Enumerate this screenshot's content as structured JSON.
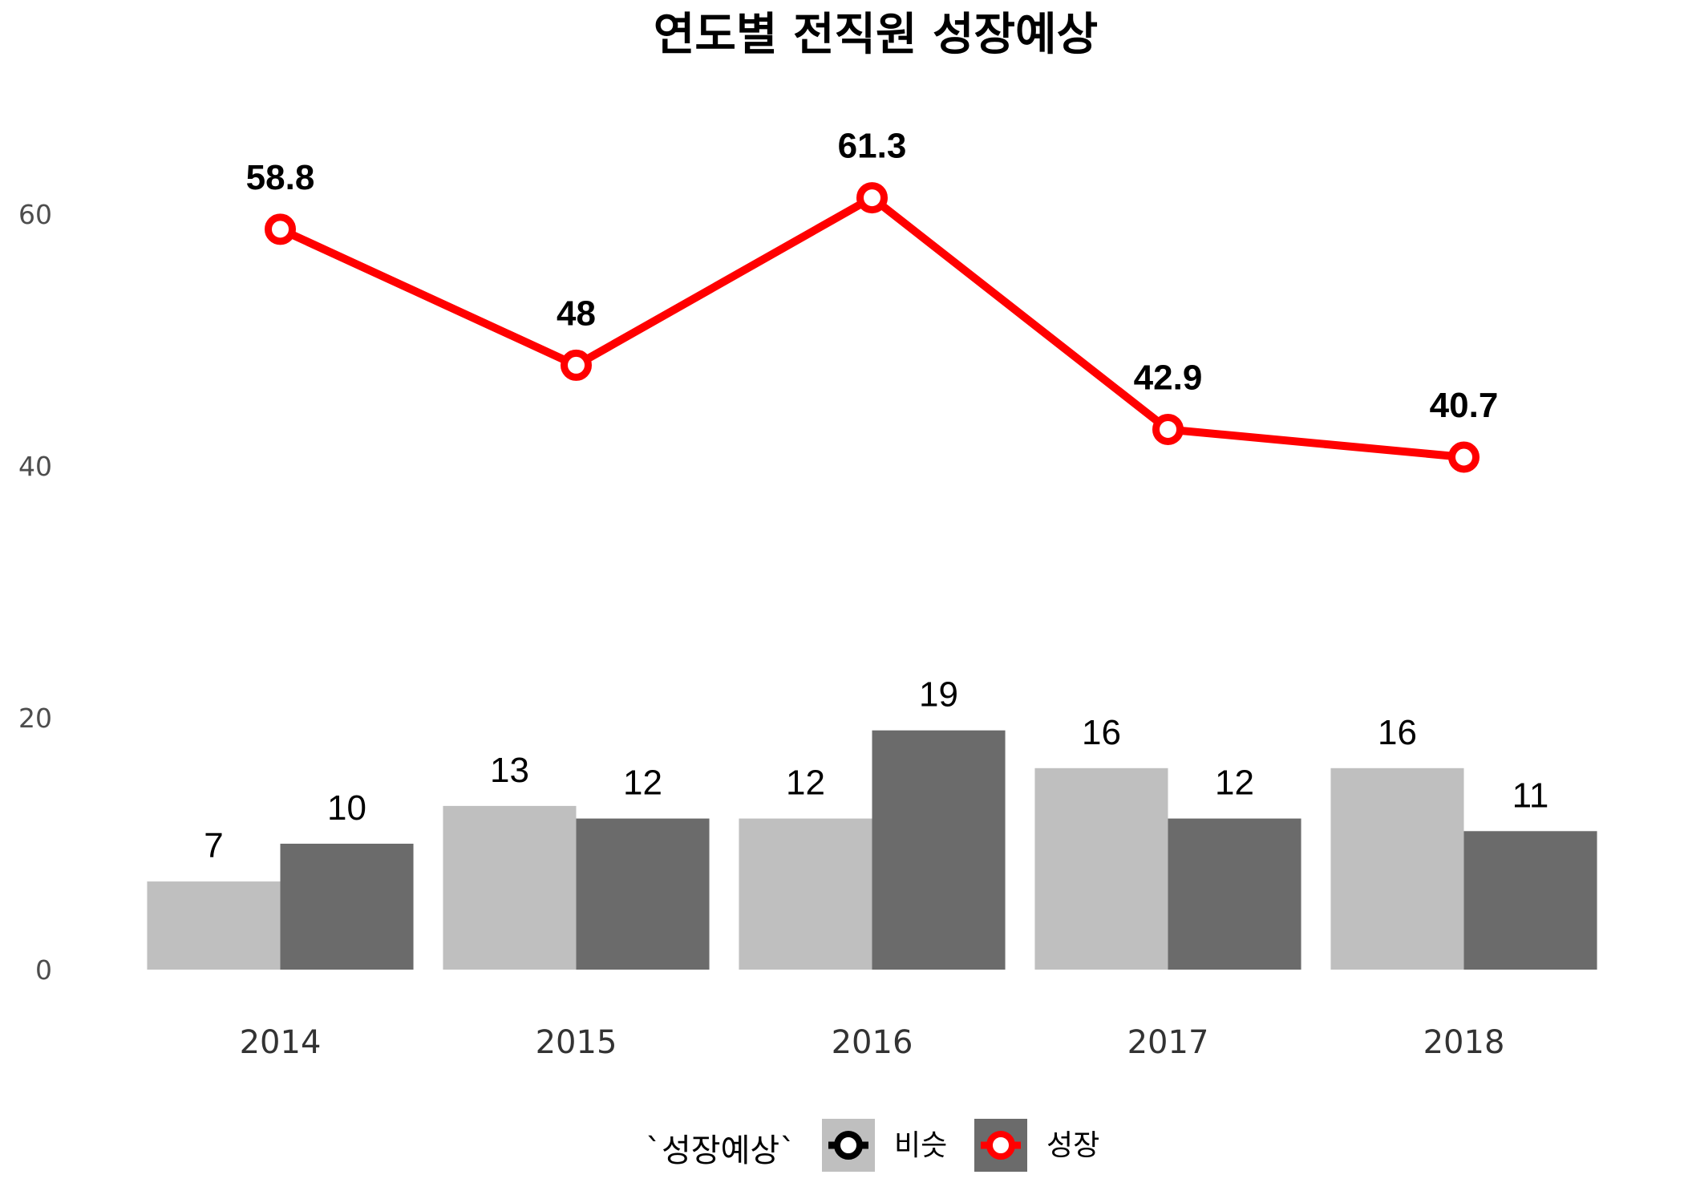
{
  "chart_data": {
    "type": "bar",
    "title": "연도별 전직원 성장예상",
    "xlabel": "",
    "ylabel": "",
    "categories": [
      "2014",
      "2015",
      "2016",
      "2017",
      "2018"
    ],
    "series": [
      {
        "name": "비슷",
        "type": "bar",
        "values": [
          7,
          13,
          12,
          16,
          16
        ],
        "color": "#bfbfbf"
      },
      {
        "name": "성장",
        "type": "bar",
        "values": [
          10,
          12,
          19,
          12,
          11
        ],
        "color": "#6b6b6b"
      }
    ],
    "line": {
      "type": "line",
      "values": [
        58.8,
        48,
        61.3,
        42.9,
        40.7
      ],
      "labels": [
        "58.8",
        "48",
        "61.3",
        "42.9",
        "40.7"
      ],
      "color": "#ff0000"
    },
    "ylim": [
      0,
      68
    ],
    "yticks": [
      0,
      20,
      40,
      60
    ],
    "grid": false,
    "legend": {
      "title": "`성장예상`",
      "position": "bottom",
      "items": [
        {
          "label": "비슷",
          "fill": "#bfbfbf",
          "ring": "#000000"
        },
        {
          "label": "성장",
          "fill": "#6b6b6b",
          "ring": "#ff0000"
        }
      ]
    }
  }
}
